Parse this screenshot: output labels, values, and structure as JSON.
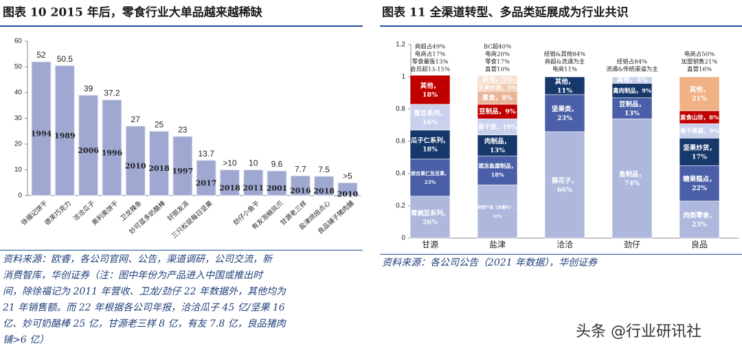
{
  "chart_data": [
    {
      "type": "bar",
      "title": "图表 10  2015 年后，零食行业大单品越来越稀缺",
      "categories": [
        "徐福记饼干",
        "德芙巧克力",
        "洽洽瓜子",
        "奥利奥饼干",
        "卫龙辣条",
        "妙可蓝多奶酪棒",
        "好丽友派",
        "三只松鼠每日坚果",
        null,
        "劲仔小鱼干",
        "有友泡椒凤爪",
        "甘源老三样",
        "盐津烘焙点心",
        "良品铺子猪肉脯"
      ],
      "values": [
        52,
        50.5,
        39,
        37.2,
        27,
        25,
        23,
        13.7,
        10,
        10,
        9.6,
        7.7,
        7.5,
        5
      ],
      "value_labels": [
        "52",
        "50.5",
        "39",
        "37.2",
        "27",
        "25",
        "23",
        "13.7",
        ">10",
        "10",
        "9.6",
        "7.7",
        "7.5",
        ">5"
      ],
      "launch_years": [
        1994,
        1989,
        2006,
        1996,
        2010,
        2018,
        1997,
        2017,
        2018,
        2011,
        2001,
        2016,
        2018,
        2010
      ],
      "color": "#9fa8d1",
      "year_color": "#c00000",
      "ylim": [
        0,
        60
      ],
      "yticks": [
        0,
        10,
        20,
        30,
        40,
        50,
        60
      ],
      "grid": false,
      "source": [
        "资料来源：欧睿，各公司官网、公告，渠道调研，公司交流，新",
        "消费智库，华创证券（注：图中年份为产品进入中国或推出时",
        "间，除徐福记为 2011 年营收、卫龙/劲仔 22 年数据外，其他均为",
        "21 年销售额。而 22 年根据各公司年报，洽洽瓜子 45 亿/坚果 16",
        "亿、妙可奶酪棒 25 亿，甘源老三样 8 亿，有友 7.8 亿，良品猪肉",
        "铺>6 亿）"
      ]
    },
    {
      "type": "stacked_bar",
      "title": "图表 11  全渠道转型、多品类延展成为行业共识",
      "ylim": [
        0,
        1.2
      ],
      "yticks": [
        0,
        0.2,
        0.4,
        0.6,
        0.8,
        1,
        1.2
      ],
      "grid": false,
      "stacks": [
        {
          "category": "甘源",
          "notes": [
            "商超占49%",
            "电商占17%",
            "零食量贩13%",
            "会员超13-15%"
          ],
          "segments": [
            {
              "name": "青豌豆系列，",
              "value": 0.26,
              "value_label": "26%",
              "color": "#aeb8dd"
            },
            {
              "name": "综合果仁及豆果，",
              "value": 0.23,
              "value_label": "23%",
              "color": "#4a5fa7"
            },
            {
              "name": "瓜子仁系列，",
              "value": 0.18,
              "value_label": "18%",
              "color": "#17386b"
            },
            {
              "name": "蚕豆系列，",
              "value": 0.16,
              "value_label": "16%",
              "color": "#c9d1ec"
            },
            {
              "name": "其他，",
              "value": 0.18,
              "value_label": "18%",
              "color": "#c00000"
            }
          ]
        },
        {
          "category": "盐津",
          "notes": [
            "BC超40%",
            "电商20%",
            "零食17%",
            "直营10%"
          ],
          "segments": [
            {
              "name": "烘焙产品（含薯片），",
              "value": 0.33,
              "value_label": "33%",
              "color": "#aeb8dd"
            },
            {
              "name": "速冻鱼糜制品，",
              "value": 0.18,
              "value_label": "18%",
              "color": "#4a5fa7"
            },
            {
              "name": "肉制品，",
              "value": 0.13,
              "value_label": "13%",
              "color": "#17386b"
            },
            {
              "name": "果干类，",
              "value": 0.1,
              "value_label": "10%",
              "color": "#c9d1ec"
            },
            {
              "name": "豆制品，",
              "value": 0.09,
              "value_label": "9%",
              "color": "#c00000"
            },
            {
              "name": "素食，",
              "value": 0.08,
              "value_label": "8%",
              "color": "#e9b597"
            },
            {
              "name": "坚果炒货，",
              "value": 0.05,
              "value_label": "5%",
              "color": "#f1cdb6"
            },
            {
              "name": "其他，",
              "value": 0.05,
              "value_label": "5%",
              "color": "#f8e1d3"
            }
          ]
        },
        {
          "category": "洽洽",
          "notes": [
            "经销&其他84%",
            "商超&流通为主",
            "电商11%"
          ],
          "segments": [
            {
              "name": "葵花子，",
              "value": 0.66,
              "value_label": "66%",
              "color": "#aeb8dd"
            },
            {
              "name": "坚果类，",
              "value": 0.23,
              "value_label": "23%",
              "color": "#4a5fa7"
            },
            {
              "name": "其他，",
              "value": 0.11,
              "value_label": "11%",
              "color": "#17386b"
            }
          ]
        },
        {
          "category": "劲仔",
          "notes": [
            "经销占84%",
            "流通&传统渠道为主"
          ],
          "segments": [
            {
              "name": "鱼制品，",
              "value": 0.74,
              "value_label": "74%",
              "color": "#aeb8dd"
            },
            {
              "name": "豆制品，",
              "value": 0.13,
              "value_label": "13%",
              "color": "#4a5fa7"
            },
            {
              "name": "禽肉制品，",
              "value": 0.09,
              "value_label": "9%",
              "color": "#17386b"
            },
            {
              "name": "其他，",
              "value": 0.04,
              "value_label": "4%",
              "color": "#c9d1ec"
            }
          ]
        },
        {
          "category": "良品",
          "notes": [
            "电商占50%",
            "加盟销售21%",
            "直营16%"
          ],
          "segments": [
            {
              "name": "肉类零食，",
              "value": 0.23,
              "value_label": "23%",
              "color": "#aeb8dd"
            },
            {
              "name": "糖果糕点，",
              "value": 0.22,
              "value_label": "22%",
              "color": "#4a5fa7"
            },
            {
              "name": "坚果炒货，",
              "value": 0.17,
              "value_label": "17%",
              "color": "#17386b"
            },
            {
              "name": "果干果脯，",
              "value": 0.09,
              "value_label": "9%",
              "color": "#c9d1ec"
            },
            {
              "name": "素食山珍，",
              "value": 0.08,
              "value_label": "8%",
              "color": "#c00000"
            },
            {
              "name": "其他，",
              "value": 0.21,
              "value_label": "21%",
              "color": "#f0b184"
            }
          ]
        }
      ],
      "source": [
        "资料来源：各公司公告（2021 年数据），华创证券"
      ]
    }
  ],
  "watermark": "头条 @行业研讯社"
}
